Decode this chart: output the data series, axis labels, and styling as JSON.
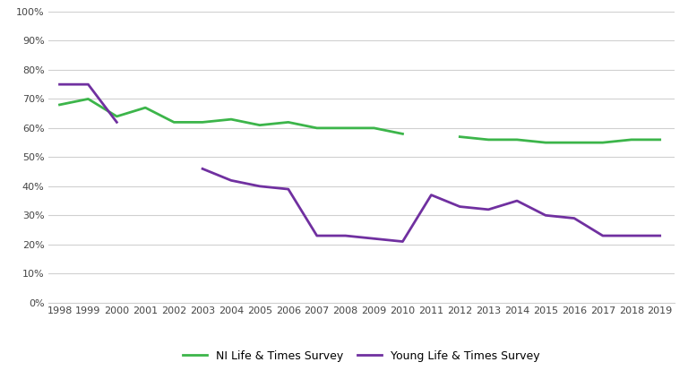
{
  "ni_years": [
    1998,
    1999,
    2000,
    2001,
    2002,
    2003,
    2004,
    2005,
    2006,
    2007,
    2008,
    2009,
    2010,
    2012,
    2013,
    2014,
    2015,
    2016,
    2017,
    2018,
    2019
  ],
  "ni_values": [
    0.68,
    0.7,
    0.64,
    0.67,
    0.62,
    0.62,
    0.63,
    0.61,
    0.62,
    0.6,
    0.6,
    0.6,
    0.58,
    0.57,
    0.56,
    0.56,
    0.55,
    0.55,
    0.55,
    0.56,
    0.56
  ],
  "ylts_years": [
    1998,
    1999,
    2000,
    2003,
    2004,
    2005,
    2006,
    2007,
    2008,
    2009,
    2010,
    2011,
    2012,
    2013,
    2014,
    2015,
    2016,
    2017,
    2018,
    2019
  ],
  "ylts_values": [
    0.75,
    0.75,
    0.62,
    0.46,
    0.42,
    0.4,
    0.39,
    0.23,
    0.23,
    0.22,
    0.21,
    0.37,
    0.33,
    0.32,
    0.35,
    0.3,
    0.29,
    0.23,
    0.23,
    0.23
  ],
  "ni_color": "#3cb54a",
  "ylts_color": "#7030a0",
  "ni_label": "NI Life & Times Survey",
  "ylts_label": "Young Life & Times Survey",
  "yticks": [
    0.0,
    0.1,
    0.2,
    0.3,
    0.4,
    0.5,
    0.6,
    0.7,
    0.8,
    0.9,
    1.0
  ],
  "xticks": [
    1998,
    1999,
    2000,
    2001,
    2002,
    2003,
    2004,
    2005,
    2006,
    2007,
    2008,
    2009,
    2010,
    2011,
    2012,
    2013,
    2014,
    2015,
    2016,
    2017,
    2018,
    2019
  ],
  "bg_color": "#ffffff",
  "grid_color": "#d0d0d0",
  "line_width": 2.0,
  "legend_fontsize": 9,
  "tick_fontsize": 8
}
